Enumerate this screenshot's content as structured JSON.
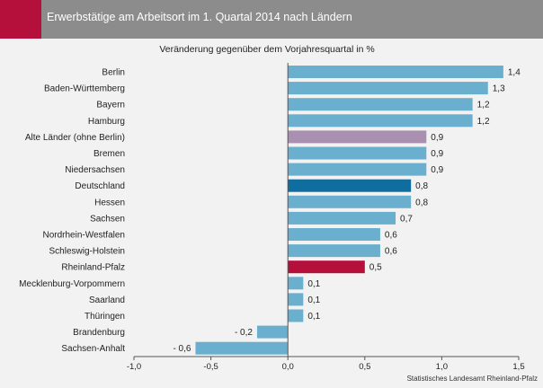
{
  "header": {
    "title": "Erwerbstätige am Arbeitsort im 1. Quartal 2014 nach Ländern",
    "accent_color": "#b5103c",
    "bar_color": "#8c8c8c"
  },
  "source": "Statistisches Landesamt Rheinland-Pfalz",
  "chart_data": {
    "type": "bar",
    "orientation": "horizontal",
    "title": "Veränderung gegenüber dem Vorjahresquartal in %",
    "categories": [
      "Berlin",
      "Baden-Württemberg",
      "Bayern",
      "Hamburg",
      "Alte Länder (ohne Berlin)",
      "Bremen",
      "Niedersachsen",
      "Deutschland",
      "Hessen",
      "Sachsen",
      "Nordrhein-Westfalen",
      "Schleswig-Holstein",
      "Rheinland-Pfalz",
      "Mecklenburg-Vorpommern",
      "Saarland",
      "Thüringen",
      "Brandenburg",
      "Sachsen-Anhalt"
    ],
    "values": [
      1.4,
      1.3,
      1.2,
      1.2,
      0.9,
      0.9,
      0.9,
      0.8,
      0.8,
      0.7,
      0.6,
      0.6,
      0.5,
      0.1,
      0.1,
      0.1,
      -0.2,
      -0.6
    ],
    "value_labels": [
      "1,4",
      "1,3",
      "1,2",
      "1,2",
      "0,9",
      "0,9",
      "0,9",
      "0,8",
      "0,8",
      "0,7",
      "0,6",
      "0,6",
      "0,5",
      "0,1",
      "0,1",
      "0,1",
      "- 0,2",
      "- 0,6"
    ],
    "colors": {
      "default": "#6aafcd",
      "Alte Länder (ohne Berlin)": "#a98fb0",
      "Deutschland": "#0f6e9e",
      "Rheinland-Pfalz": "#b5103c"
    },
    "xlim": [
      -1.0,
      1.5
    ],
    "xticks": [
      -1.0,
      -0.5,
      0.0,
      0.5,
      1.0,
      1.5
    ],
    "xtick_labels": [
      "-1,0",
      "-0,5",
      "0,0",
      "0,5",
      "1,0",
      "1,5"
    ],
    "grid": false,
    "legend": "none"
  }
}
